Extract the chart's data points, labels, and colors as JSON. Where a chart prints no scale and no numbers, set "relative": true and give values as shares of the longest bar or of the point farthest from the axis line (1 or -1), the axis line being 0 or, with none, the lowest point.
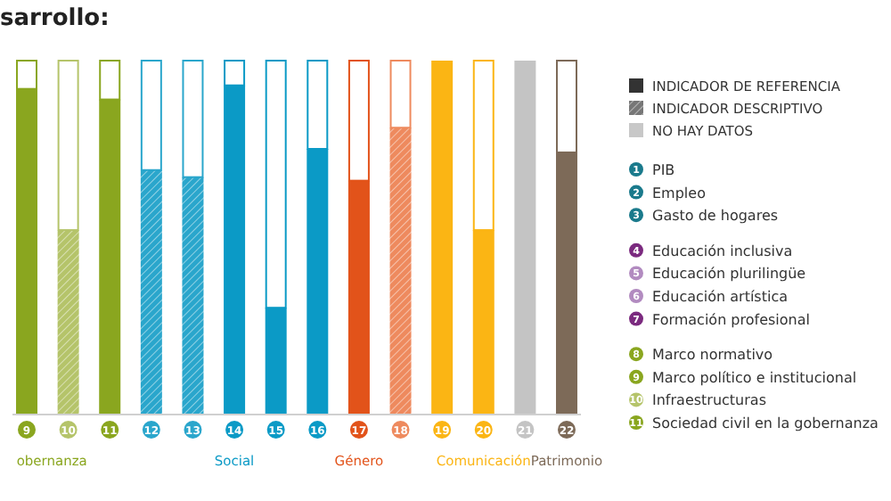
{
  "chart_data": {
    "type": "bar",
    "title": "sarrollo:",
    "relative": true,
    "categories": [
      "9",
      "10",
      "11",
      "12",
      "13",
      "14",
      "15",
      "16",
      "17",
      "18",
      "19",
      "20",
      "21",
      "22"
    ],
    "series": [
      {
        "colors": [
          "#8aa61f",
          null,
          "#8aa61f",
          null,
          null,
          "#0b9ac6",
          "#0b9ac6",
          "#0b9ac6",
          "#e2531a",
          null,
          "#fbb514",
          "#fbb514",
          null,
          "#7d6a58"
        ],
        "values": [
          0.92,
          null,
          0.89,
          null,
          null,
          0.93,
          0.3,
          0.75,
          0.66,
          null,
          1,
          0.52,
          null,
          0.74
        ]
      },
      {
        "colors": [
          null,
          "#b5c46a",
          null,
          "#2aa6cc",
          "#2aa6cc",
          null,
          null,
          null,
          null,
          "#ee8a5e",
          null,
          null,
          null,
          null
        ],
        "values": [
          null,
          0.52,
          null,
          0.69,
          0.67,
          null,
          null,
          null,
          null,
          0.81,
          null,
          null,
          null,
          null
        ]
      },
      {
        "colors": [
          null,
          null,
          null,
          null,
          null,
          null,
          null,
          null,
          null,
          null,
          null,
          null,
          "#c4c4c4",
          null
        ],
        "values": [
          null,
          null,
          null,
          null,
          null,
          null,
          null,
          null,
          null,
          null,
          null,
          null,
          1,
          null
        ]
      },
      {
        "colors": [
          "#8aa61f",
          "#b5c46a",
          "#8aa61f",
          "#2aa6cc",
          "#2aa6cc",
          "#0b9ac6",
          "#0b9ac6",
          "#0b9ac6",
          "#e2531a",
          "#ee8a5e",
          null,
          "#fbb514",
          null,
          "#7d6a58"
        ],
        "values": [
          0.08,
          0.48,
          0.11,
          0.31,
          0.33,
          0.07,
          0.7,
          0.25,
          0.34,
          0.19,
          null,
          0.48,
          null,
          0.26
        ]
      }
    ],
    "stacked": true,
    "annotations": [
      "obernanza",
      "Social",
      "Género",
      "Comunicación",
      "Patrimonio",
      "INDICADOR DE REFERENCIA",
      "INDICADOR DESCRIPTIVO",
      "NO HAY DATOS",
      "1 PIB",
      "2 Empleo",
      "3 Gasto de hogares",
      "4 Educación inclusiva",
      "5 Educación plurilingüe",
      "6 Educación artística",
      "7 Formación profesional",
      "8 Marco normativo",
      "9 Marco político e institucional",
      "10 Infraestructuras",
      "11 Sociedad civil en la gobernanza"
    ]
  }
}
